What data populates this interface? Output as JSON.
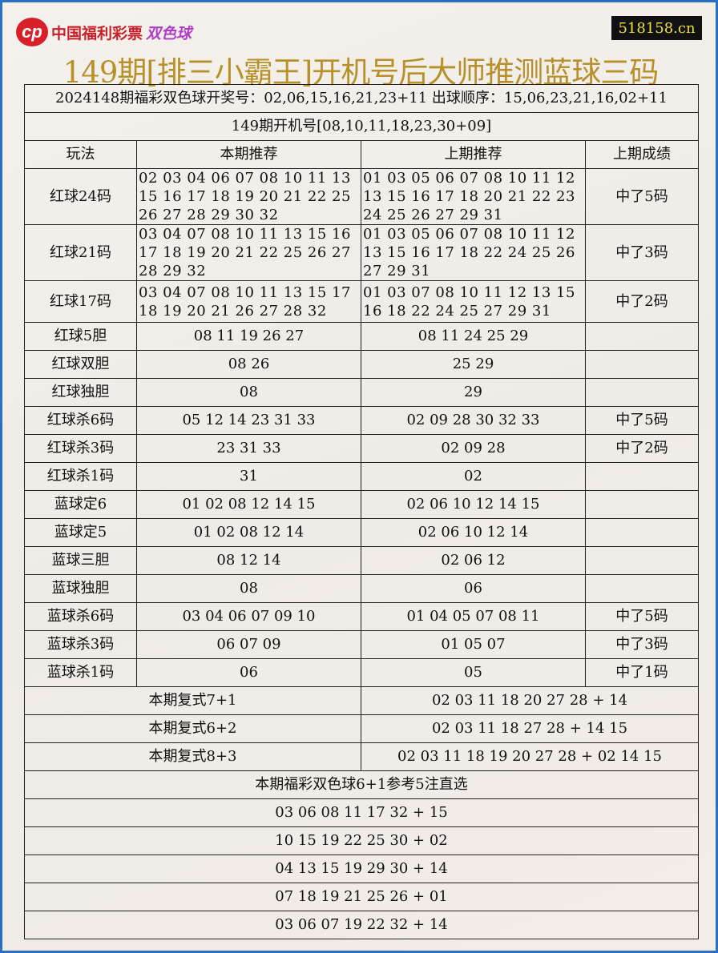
{
  "logo": {
    "text": "中国福利彩票",
    "brand": "双色球"
  },
  "site": "518158.cn",
  "title": "149期[排三小霸王]开机号后大师推测蓝球三码",
  "draw_info": "2024148期福彩双色球开奖号：02,06,15,16,21,23+11 出球顺序：15,06,23,21,16,02+11",
  "machine": "149期开机号[08,10,11,18,23,30+09]",
  "headers": [
    "玩法",
    "本期推荐",
    "上期推荐",
    "上期成绩"
  ],
  "multi_rows": [
    {
      "name": "红球24码",
      "cur": "02 03 04 06 07 08 10 11 13\n15 16 17 18 19 20 21 22 25\n26 27 28 29 30 32",
      "prev": "01 03 05 06 07 08 10 11 12\n13 15 16 17 18 20 21 22 23\n24 25 26 27 29 31",
      "result": "中了5码"
    },
    {
      "name": "红球21码",
      "cur": "03 04 07 08 10 11 13 15 16\n17 18 19 20 21 22 25 26 27\n28 29 32",
      "prev": "01 03 05 06 07 08 10 11 12\n13 15 16 17 18 22 24 25 26\n27 29 31",
      "result": "中了3码"
    },
    {
      "name": "红球17码",
      "cur": "03 04 07 08 10 11 13 15 17\n18 19 20 21 26 27 28 32",
      "prev": "01 03 07 08 10 11 12 13 15\n16 18 22 24 25 27 29 31",
      "result": "中了2码"
    }
  ],
  "rows": [
    {
      "name": "红球5胆",
      "cur": "08 11 19 26 27",
      "prev": "08 11 24 25 29",
      "result": ""
    },
    {
      "name": "红球双胆",
      "cur": "08 26",
      "prev": "25 29",
      "result": ""
    },
    {
      "name": "红球独胆",
      "cur": "08",
      "prev": "29",
      "result": ""
    },
    {
      "name": "红球杀6码",
      "cur": "05 12 14 23 31 33",
      "prev": "02 09 28 30 32 33",
      "result": "中了5码"
    },
    {
      "name": "红球杀3码",
      "cur": "23 31 33",
      "prev": "02 09 28",
      "result": "中了2码"
    },
    {
      "name": "红球杀1码",
      "cur": "31",
      "prev": "02",
      "result": ""
    },
    {
      "name": "蓝球定6",
      "cur": "01 02 08 12 14 15",
      "prev": "02 06 10 12 14 15",
      "result": ""
    },
    {
      "name": "蓝球定5",
      "cur": "01 02 08 12 14",
      "prev": "02 06 10 12 14",
      "result": ""
    },
    {
      "name": "蓝球三胆",
      "cur": "08 12 14",
      "prev": "02 06 12",
      "result": ""
    },
    {
      "name": "蓝球独胆",
      "cur": "08",
      "prev": "06",
      "result": ""
    },
    {
      "name": "蓝球杀6码",
      "cur": "03 04 06 07 09 10",
      "prev": "01 04 05 07 08 11",
      "result": "中了5码"
    },
    {
      "name": "蓝球杀3码",
      "cur": "06 07 09",
      "prev": "01 05 07",
      "result": "中了3码"
    },
    {
      "name": "蓝球杀1码",
      "cur": "06",
      "prev": "05",
      "result": "中了1码"
    }
  ],
  "fushi": [
    {
      "name": "本期复式7+1",
      "nums": "02 03 11 18 20 27 28 + 14"
    },
    {
      "name": "本期复式6+2",
      "nums": "02 03 11 18 27 28 + 14 15"
    },
    {
      "name": "本期复式8+3",
      "nums": "02 03 11 18 19 20 27 28 + 02 14 15"
    }
  ],
  "picks_title": "本期福彩双色球6+1参考5注直选",
  "picks": [
    "03 06 08 11 17 32 + 15",
    "10 15 19 22 25 30 + 02",
    "04 13 15 19 29 30 + 14",
    "07 18 19 21 25 26 + 01",
    "03 06 07 19 22 32 + 14"
  ]
}
